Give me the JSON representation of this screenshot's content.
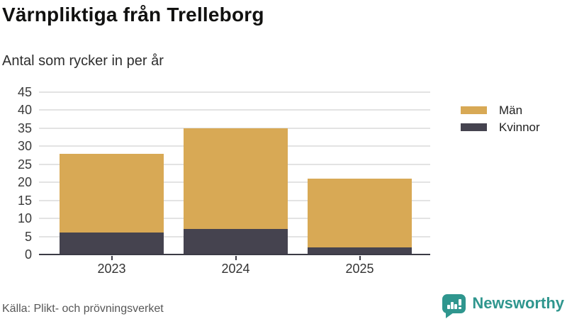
{
  "header": {
    "title": "Värnpliktiga från Trelleborg",
    "subtitle": "Antal som rycker in per år"
  },
  "chart_data": {
    "type": "bar",
    "stacked": true,
    "title": "Värnpliktiga från Trelleborg",
    "subtitle": "Antal som rycker in per år",
    "categories": [
      "2023",
      "2024",
      "2025"
    ],
    "series": [
      {
        "name": "Män",
        "color": "#d8a955",
        "values": [
          22,
          28,
          19
        ]
      },
      {
        "name": "Kvinnor",
        "color": "#45434f",
        "values": [
          6,
          7,
          2
        ]
      }
    ],
    "stack_order_bottom_to_top": [
      "Kvinnor",
      "Män"
    ],
    "totals": [
      28,
      35,
      21
    ],
    "xlabel": "",
    "ylabel": "",
    "ylim": [
      0,
      45
    ],
    "yticks": [
      0,
      5,
      10,
      15,
      20,
      25,
      30,
      35,
      40,
      45
    ],
    "grid": "horizontal",
    "legend_position": "right",
    "colors": {
      "grid": "#e3e3e3",
      "axis_line": "#3b3b45",
      "tick_label": "#3a3a3a"
    }
  },
  "legend": {
    "items": [
      {
        "label": "Män",
        "color": "#d8a955"
      },
      {
        "label": "Kvinnor",
        "color": "#45434f"
      }
    ]
  },
  "footer": {
    "source": "Källa: Plikt- och prövningsverket",
    "brand": {
      "name": "Newsworthy",
      "color": "#2f968e",
      "icon": "bar-chart-speech-bubble"
    }
  }
}
